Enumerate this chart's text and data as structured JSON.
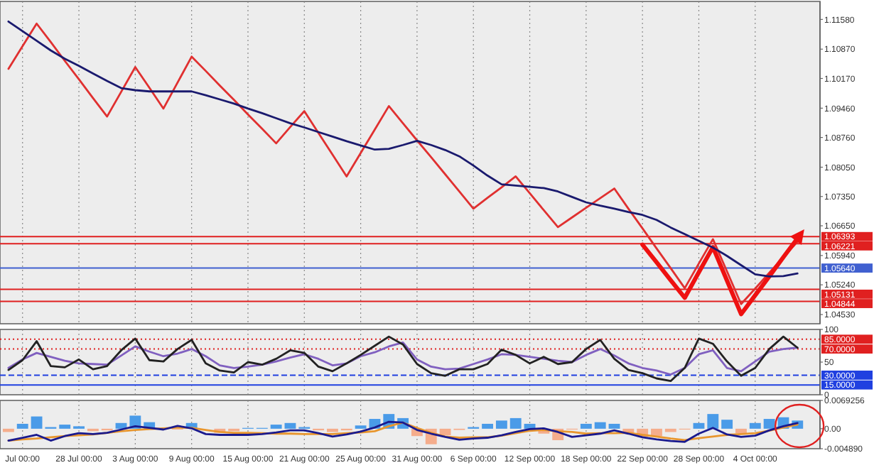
{
  "chart_data": [
    {
      "type": "line",
      "ylim": [
        1.0431,
        1.1201
      ],
      "grid": "x",
      "tick_labels": "y",
      "categories": [
        null,
        null,
        null,
        null,
        null,
        null,
        null,
        null,
        null,
        null,
        null,
        null,
        null,
        null,
        null,
        null,
        null,
        null,
        null,
        null,
        null,
        null,
        null,
        null,
        null,
        null,
        null,
        null,
        null,
        null,
        null,
        null,
        null,
        null,
        null,
        null,
        null,
        null,
        null,
        null,
        null,
        null,
        null,
        null,
        null,
        null,
        null,
        null,
        null,
        null,
        null,
        null,
        null,
        null,
        null,
        null,
        null,
        null
      ],
      "yticks": [
        {
          "value": 1.1158,
          "label": "1.11580"
        },
        {
          "value": 1.1087,
          "label": "1.10870"
        },
        {
          "value": 1.1017,
          "label": "1.10170"
        },
        {
          "value": 1.0946,
          "label": "1.09460"
        },
        {
          "value": 1.0876,
          "label": "1.08760"
        },
        {
          "value": 1.0805,
          "label": "1.08050"
        },
        {
          "value": 1.0735,
          "label": "1.07350"
        },
        {
          "value": 1.0665,
          "label": "1.06650"
        },
        {
          "value": 1.0594,
          "label": "1.05940"
        },
        {
          "value": 1.0524,
          "label": "1.05240"
        },
        {
          "value": 1.0453,
          "label": "1.04530"
        }
      ],
      "ref_lines": [
        {
          "axis": "y",
          "value": 1.06393,
          "label": "1.06393",
          "color": "#e02020"
        },
        {
          "axis": "y",
          "value": 1.06221,
          "label": "1.06221",
          "color": "#e02020"
        },
        {
          "axis": "y",
          "value": 1.0564,
          "label": "1.05640",
          "color": "#4060d0"
        },
        {
          "axis": "y",
          "value": 1.05131,
          "label": "1.05131",
          "color": "#e02020"
        },
        {
          "axis": "y",
          "value": 1.04844,
          "label": "1.04844",
          "color": "#e02020"
        }
      ],
      "series": [
        {
          "color": "#e03030",
          "values": [
            1.104,
            1.1094,
            1.1148,
            1.1104,
            1.1059,
            1.1015,
            1.097,
            1.0926,
            1.0985,
            1.1044,
            1.0995,
            1.0945,
            1.1007,
            1.1069,
            1.1035,
            1.1,
            1.0966,
            1.0931,
            1.0897,
            1.0862,
            1.0901,
            1.0939,
            1.0887,
            1.0835,
            1.0783,
            1.0839,
            1.0895,
            1.0951,
            1.091,
            1.0869,
            1.0829,
            1.0788,
            1.0747,
            1.0706,
            1.0732,
            1.0757,
            1.0783,
            1.0743,
            1.0702,
            1.0662,
            1.0685,
            1.0708,
            1.0731,
            1.0754,
            1.0706,
            1.0659,
            1.0611,
            1.0564,
            1.0516,
            1.0575,
            1.0633,
            1.0556,
            1.0478,
            1.0515,
            1.0553,
            1.059,
            1.0627,
            null
          ]
        },
        {
          "color": "#ee1111",
          "values": [
            null,
            null,
            null,
            null,
            null,
            null,
            null,
            null,
            null,
            null,
            null,
            null,
            null,
            null,
            null,
            null,
            null,
            null,
            null,
            null,
            null,
            null,
            null,
            null,
            null,
            null,
            null,
            null,
            null,
            null,
            null,
            null,
            null,
            null,
            null,
            null,
            null,
            null,
            null,
            null,
            null,
            null,
            null,
            null,
            null,
            1.062,
            1.0578,
            1.0535,
            1.0493,
            1.0554,
            1.0614,
            1.0534,
            1.0454,
            1.0499,
            1.0544,
            1.059,
            1.0635,
            null
          ]
        },
        {
          "color": "#1a1a6e",
          "values": [
            1.1153,
            1.113,
            1.1107,
            1.1084,
            1.1064,
            1.1047,
            1.1029,
            1.1011,
            1.0994,
            1.0989,
            1.0986,
            1.0986,
            1.0986,
            1.0986,
            1.0977,
            1.0967,
            1.0957,
            1.0945,
            1.0934,
            1.0922,
            1.091,
            1.09,
            1.0889,
            1.0878,
            1.0867,
            1.0857,
            1.0847,
            1.0849,
            1.0858,
            1.0868,
            1.0858,
            1.0846,
            1.0831,
            1.0809,
            1.0785,
            1.0764,
            1.0761,
            1.0758,
            1.0755,
            1.0747,
            1.0734,
            1.0721,
            1.0713,
            1.0706,
            1.0698,
            1.0691,
            1.0679,
            1.0661,
            1.0645,
            1.0629,
            1.0613,
            1.0593,
            1.0571,
            1.0549,
            1.0544,
            1.0545,
            1.0551,
            null
          ]
        }
      ]
    },
    {
      "type": "line",
      "ylim": [
        0,
        100
      ],
      "grid": "x",
      "tick_labels": "y",
      "categories": [
        null,
        null,
        null,
        null,
        null,
        null,
        null,
        null,
        null,
        null,
        null,
        null,
        null,
        null,
        null,
        null,
        null,
        null,
        null,
        null,
        null,
        null,
        null,
        null,
        null,
        null,
        null,
        null,
        null,
        null,
        null,
        null,
        null,
        null,
        null,
        null,
        null,
        null,
        null,
        null,
        null,
        null,
        null,
        null,
        null,
        null,
        null,
        null,
        null,
        null,
        null,
        null,
        null,
        null,
        null,
        null,
        null,
        null
      ],
      "yticks": [
        100,
        50,
        0
      ],
      "ref_lines": [
        {
          "axis": "y",
          "value": 85,
          "label": "85.0000",
          "color": "#e02020",
          "line_style": "dotted"
        },
        {
          "axis": "y",
          "value": 70,
          "label": "70.0000",
          "color": "#e02020",
          "line_style": "dotted"
        },
        {
          "axis": "y",
          "value": 30,
          "label": "30.0000",
          "color": "#2040e0",
          "line_style": "dashed"
        },
        {
          "axis": "y",
          "value": 15,
          "label": "15.0000",
          "color": "#2040e0",
          "line_style": "solid"
        }
      ],
      "series": [
        {
          "color": "#8060c0",
          "values": [
            41,
            54,
            64,
            58,
            52,
            48,
            47,
            46,
            60,
            74,
            66,
            59,
            63,
            70,
            59,
            45,
            41,
            43,
            46,
            51,
            57,
            62,
            55,
            45,
            48,
            59,
            65,
            74,
            80,
            54,
            43,
            39,
            40,
            47,
            54,
            62,
            61,
            58,
            55,
            52,
            50,
            61,
            70,
            60,
            48,
            41,
            37,
            31,
            41,
            62,
            68,
            41,
            36,
            51,
            66,
            70,
            72,
            null
          ]
        },
        {
          "color": "#222222",
          "values": [
            38,
            53,
            82,
            44,
            42,
            54,
            39,
            44,
            68,
            86,
            53,
            51,
            70,
            84,
            48,
            37,
            34,
            50,
            46,
            55,
            68,
            64,
            43,
            36,
            48,
            61,
            75,
            89,
            77,
            47,
            33,
            29,
            39,
            39,
            47,
            69,
            61,
            48,
            58,
            47,
            50,
            70,
            84,
            55,
            38,
            33,
            25,
            21,
            41,
            86,
            78,
            51,
            29,
            41,
            70,
            89,
            72,
            null
          ]
        }
      ]
    },
    {
      "type": "bar",
      "ylim": [
        -0.00489,
        0.0069256
      ],
      "grid": "x",
      "categories": [
        null,
        "Jul 00:00",
        null,
        null,
        null,
        "28 Jul 00:00",
        null,
        null,
        null,
        "3 Aug 00:00",
        null,
        null,
        null,
        "9 Aug 00:00",
        null,
        null,
        null,
        "15 Aug 00:00",
        null,
        null,
        null,
        "21 Aug 00:00",
        null,
        null,
        null,
        "25 Aug 00:00",
        null,
        null,
        null,
        "31 Aug 00:00",
        null,
        null,
        null,
        "6 Sep 00:00",
        null,
        null,
        null,
        "12 Sep 00:00",
        null,
        null,
        null,
        "18 Sep 00:00",
        null,
        null,
        null,
        "22 Sep 00:00",
        null,
        null,
        null,
        "28 Sep 00:00",
        null,
        null,
        null,
        "4 Oct 00:00",
        null,
        null,
        null,
        null
      ],
      "yticks": [
        0.0069256,
        {
          "value": 0,
          "label": "0.00"
        },
        {
          "value": -0.00489,
          "label": "-0.004890"
        }
      ],
      "series": [
        {
          "values": [
            -0.0008,
            0.0012,
            0.003,
            0.0004,
            0.001,
            0.0006,
            -0.0006,
            -0.0004,
            0.0014,
            0.0032,
            0.0016,
            null,
            -0.0002,
            0.0014,
            null,
            -0.001,
            -0.0006,
            0.0002,
            0.0002,
            0.001,
            0.0014,
            0.0004,
            -0.0004,
            -0.0008,
            -0.0004,
            0.0008,
            0.0024,
            0.0036,
            0.0026,
            -0.0018,
            -0.0038,
            -0.0016,
            -0.0003,
            0.0004,
            0.0012,
            0.002,
            0.0026,
            0.0012,
            -0.0012,
            -0.0028,
            -0.0002,
            0.0012,
            0.0016,
            0.0012,
            -0.001,
            -0.002,
            -0.0018,
            -0.0008,
            -0.0002,
            0.0014,
            0.0036,
            0.0022,
            -0.0011,
            0.0014,
            0.0024,
            0.0028,
            0.002,
            null
          ],
          "colors": [
            "#f5ad8c",
            "#4a9be8",
            "#4a9be8",
            "#4a9be8",
            "#4a9be8",
            "#4a9be8",
            "#f5ad8c",
            "#f5ad8c",
            "#4a9be8",
            "#4a9be8",
            "#4a9be8",
            "#4a9be8",
            "#f5ad8c",
            "#4a9be8",
            "#f5ad8c",
            "#f5ad8c",
            "#f5ad8c",
            "#4a9be8",
            "#4a9be8",
            "#4a9be8",
            "#4a9be8",
            "#4a9be8",
            "#f5ad8c",
            "#f5ad8c",
            "#f5ad8c",
            "#4a9be8",
            "#4a9be8",
            "#4a9be8",
            "#4a9be8",
            "#f5ad8c",
            "#f5ad8c",
            "#f5ad8c",
            "#f5ad8c",
            "#4a9be8",
            "#4a9be8",
            "#4a9be8",
            "#4a9be8",
            "#4a9be8",
            "#f5ad8c",
            "#f5ad8c",
            "#f5ad8c",
            "#4a9be8",
            "#4a9be8",
            "#4a9be8",
            "#f5ad8c",
            "#f5ad8c",
            "#f5ad8c",
            "#f5ad8c",
            "#f5ad8c",
            "#4a9be8",
            "#4a9be8",
            "#4a9be8",
            "#f5ad8c",
            "#4a9be8",
            "#4a9be8",
            "#4a9be8",
            "#4a9be8",
            "#4a9be8"
          ]
        },
        {
          "type": "line",
          "color": "#e8962e",
          "values": [
            -0.0029,
            -0.0026,
            -0.0024,
            -0.0021,
            -0.0018,
            -0.0016,
            -0.0014,
            -0.001,
            -0.0006,
            -0.0003,
            -0.0001,
            0.0001,
            0.0003,
            0.0002,
            -0.0003,
            -0.0008,
            -0.001,
            -0.001,
            -0.0011,
            -0.0012,
            -0.0012,
            -0.0013,
            -0.0013,
            -0.0013,
            -0.0011,
            -0.0009,
            -0.0006,
            0.0006,
            0.0015,
            0.0002,
            -0.001,
            -0.0019,
            -0.0022,
            -0.0021,
            -0.0021,
            -0.0017,
            -0.0011,
            -0.0005,
            -0.0003,
            -0.0006,
            -0.0008,
            -0.0012,
            -0.0011,
            -0.0011,
            -0.001,
            -0.0015,
            -0.0019,
            -0.0024,
            -0.0028,
            -0.0023,
            -0.0019,
            -0.0015,
            -0.0013,
            -0.0011,
            -0.0005,
            0.0003,
            0.001,
            null
          ]
        },
        {
          "type": "line",
          "color": "#1a1a8e",
          "values": [
            -0.0029,
            -0.0022,
            -0.0015,
            -0.0029,
            -0.0018,
            -0.0011,
            -0.0013,
            -0.001,
            -0.0002,
            0.0006,
            0.0002,
            -0.0002,
            0.0007,
            0.0001,
            -0.0013,
            -0.0015,
            -0.0015,
            -0.0015,
            -0.0013,
            -0.0009,
            -0.0004,
            -0.0004,
            -0.0011,
            -0.0019,
            -0.0014,
            -0.0007,
            0.0003,
            0.0017,
            0.0015,
            -0.0003,
            -0.0012,
            -0.002,
            -0.0027,
            -0.0024,
            -0.0022,
            -0.0016,
            -0.0008,
            -0.0001,
            0.0001,
            -0.0008,
            -0.002,
            -0.0016,
            -0.0012,
            -0.0004,
            -0.0012,
            -0.0021,
            -0.0026,
            -0.003,
            -0.0032,
            -0.0012,
            0.0002,
            -0.0014,
            -0.002,
            -0.0017,
            -0.0004,
            0.0006,
            0.0014,
            null
          ]
        }
      ]
    }
  ]
}
